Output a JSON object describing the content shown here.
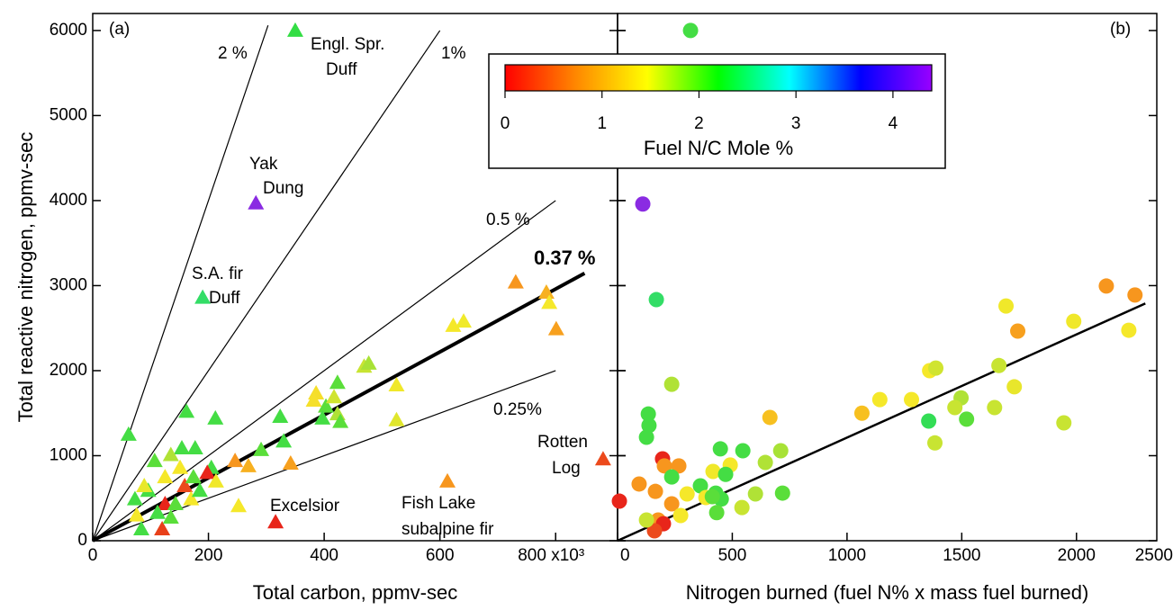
{
  "chart_data": [
    {
      "type": "scatter",
      "marker": "triangle",
      "panel_label": "(a)",
      "y_label": "Total reactive nitrogen, ppmv-sec",
      "x_label": "Total carbon, ppmv-sec",
      "xlim": [
        0,
        907
      ],
      "ylim": [
        0,
        6200
      ],
      "xticks": [
        0,
        200,
        400,
        600,
        {
          "value": 800,
          "label": "800 x10³"
        }
      ],
      "yticks": [
        0,
        1000,
        2000,
        3000,
        4000,
        5000,
        6000
      ],
      "lines": [
        {
          "label": "2 %",
          "percent": 2,
          "x_end": 303,
          "bold": false
        },
        {
          "label": "1%",
          "percent": 1,
          "x_end": 600,
          "bold": false
        },
        {
          "label": "0.5 %",
          "percent": 0.5,
          "x_end": 800,
          "bold": false
        },
        {
          "label": "0.37 %",
          "percent": 0.37,
          "x_end": 850,
          "bold": true
        },
        {
          "label": "0.25%",
          "percent": 0.25,
          "x_end": 800,
          "bold": false
        }
      ],
      "annotations": [
        {
          "lines": [
            "Engl. Spr.",
            "Duff"
          ]
        },
        {
          "lines": [
            "Yak",
            "Dung"
          ]
        },
        {
          "lines": [
            "S.A. fir",
            "Duff"
          ]
        },
        {
          "lines": [
            "Excelsior"
          ]
        },
        {
          "lines": [
            "Fish Lake",
            "subalpine fir"
          ]
        },
        {
          "lines": [
            "Rotten",
            "Log"
          ]
        }
      ],
      "series": [
        {
          "x": [
            350,
            282,
            190,
            316,
            613,
            882,
            731,
            784,
            789,
            801,
            623,
            641,
            423,
            469,
            477,
            386,
            382,
            525,
            525,
            403,
            397,
            423,
            428,
            417,
            324,
            212,
            162,
            62,
            177,
            154,
            107,
            135,
            205,
            246,
            269,
            330,
            291,
            342,
            198,
            159,
            170,
            125,
            252,
            76,
            84,
            120,
            112,
            135,
            96,
            125,
            174,
            185,
            213,
            151,
            73,
            89,
            143
          ],
          "values": [
            6000,
            3970,
            2860,
            220,
            700,
            960,
            3040,
            2920,
            2800,
            2490,
            2530,
            2580,
            1860,
            2050,
            2085,
            1735,
            1650,
            1830,
            1420,
            1580,
            1440,
            1490,
            1400,
            1690,
            1460,
            1440,
            1520,
            1250,
            1090,
            1090,
            940,
            1010,
            860,
            940,
            880,
            1170,
            1070,
            910,
            800,
            645,
            490,
            434,
            410,
            300,
            137,
            137,
            330,
            275,
            590,
            750,
            750,
            590,
            700,
            860,
            490,
            645,
            434
          ],
          "colors": [
            "#33dd44",
            "#8a2be2",
            "#33dd66",
            "#e8251a",
            "#f7961e",
            "#ec4a1c",
            "#f7961e",
            "#f7b020",
            "#f5e82a",
            "#f7a01e",
            "#f5e82a",
            "#f0ea2a",
            "#5ade3a",
            "#c8e432",
            "#a8e236",
            "#f5de2a",
            "#f5e02a",
            "#f0e82a",
            "#e0e62c",
            "#5ade3a",
            "#44dd44",
            "#b0e236",
            "#5ade3a",
            "#d0e430",
            "#44dd44",
            "#44dd44",
            "#44dd44",
            "#44dd44",
            "#44dd44",
            "#44dd44",
            "#5ade3a",
            "#b0e236",
            "#44dd44",
            "#f7961e",
            "#f7b020",
            "#44dd44",
            "#5ade3a",
            "#f7a01e",
            "#e8251a",
            "#ec4a1c",
            "#f5e82a",
            "#e8251a",
            "#f5e82a",
            "#f5e82a",
            "#44dd44",
            "#e8401a",
            "#44dd44",
            "#5ade3a",
            "#44dd44",
            "#f5e82a",
            "#5ade3a",
            "#44dd44",
            "#f0e82a",
            "#f5e82a",
            "#44dd44",
            "#e8e82a",
            "#5ade3a"
          ]
        }
      ]
    },
    {
      "type": "scatter",
      "marker": "circle",
      "panel_label": "(b)",
      "x_label": "Nitrogen burned (fuel N% x mass fuel burned)",
      "xlim": [
        0,
        2350
      ],
      "ylim": [
        0,
        6200
      ],
      "xticks": [
        0,
        500,
        1000,
        1500,
        2000,
        2500
      ],
      "yticks": [
        0,
        1000,
        2000,
        3000,
        4000,
        5000,
        6000
      ],
      "fit": {
        "x": [
          0,
          2300
        ],
        "y": [
          0,
          2790
        ]
      },
      "colorbar": {
        "label": "Fuel N/C Mole %",
        "clim": [
          0,
          4.4
        ],
        "ticks": [
          0,
          1,
          2,
          3,
          4
        ],
        "stops": [
          "#ff0000",
          "#ff8800",
          "#ffff00",
          "#00ff00",
          "#00ffff",
          "#0000ff",
          "#9900ff"
        ]
      },
      "series": [
        {
          "x": [
            318,
            110,
            169,
            2130,
            2255,
            2228,
            1988,
            1693,
            1744,
            1662,
            1729,
            1945,
            1643,
            1497,
            1470,
            1360,
            1387,
            1281,
            1143,
            1065,
            1356,
            1383,
            1521,
            664,
            711,
            644,
            546,
            448,
            491,
            416,
            471,
            601,
            719,
            542,
            428,
            452,
            432,
            236,
            134,
            137,
            126,
            196,
            267,
            204,
            94,
            165,
            8,
            236,
            177,
            200,
            161,
            236,
            303,
            361,
            385,
            275,
            126,
            413
          ],
          "values": [
            6000,
            3960,
            2835,
            2995,
            2890,
            2475,
            2580,
            2760,
            2465,
            2060,
            1810,
            1386,
            1566,
            1680,
            1566,
            2000,
            2030,
            1660,
            1660,
            1500,
            1407,
            1150,
            1430,
            1450,
            1058,
            920,
            1058,
            1080,
            890,
            815,
            780,
            550,
            560,
            390,
            560,
            490,
            330,
            1840,
            1490,
            1355,
            1217,
            963,
            880,
            880,
            667,
            580,
            465,
            434,
            243,
            200,
            116,
            750,
            550,
            645,
            508,
            296,
            243,
            518
          ],
          "colors": [
            "#44dd44",
            "#8a2be2",
            "#33dd66",
            "#f7961e",
            "#f7961e",
            "#f5e82a",
            "#f0e82a",
            "#f0e82a",
            "#f7a01e",
            "#c8e432",
            "#e8e62c",
            "#c8e432",
            "#c8e432",
            "#b0e236",
            "#c8e432",
            "#f5e82a",
            "#d0e430",
            "#f5e82a",
            "#f5e82a",
            "#f7c020",
            "#33dd55",
            "#c8e432",
            "#5ade3a",
            "#f7c020",
            "#a8e236",
            "#b0e236",
            "#44dd44",
            "#44dd44",
            "#f5e82a",
            "#f0e82a",
            "#44dd44",
            "#b0e236",
            "#5ade3a",
            "#c8e432",
            "#44dd44",
            "#44dd44",
            "#5ade3a",
            "#b0e236",
            "#44dd44",
            "#44dd44",
            "#44dd44",
            "#e8251a",
            "#f7961e",
            "#f7961e",
            "#f7961e",
            "#f7961e",
            "#e8251a",
            "#f7961e",
            "#f7961e",
            "#e8251a",
            "#ec4a1c",
            "#44dd44",
            "#f5e82a",
            "#44dd44",
            "#f5e82a",
            "#f5e82a",
            "#c8e432",
            "#5ade3a"
          ]
        }
      ]
    }
  ]
}
